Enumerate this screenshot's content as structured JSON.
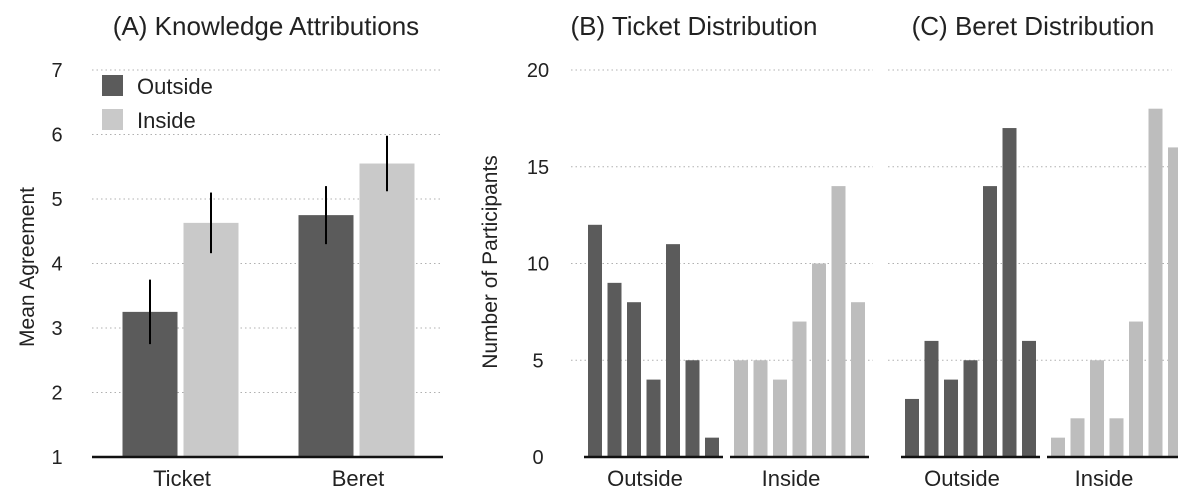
{
  "colors": {
    "outside": "#5b5b5b",
    "inside": "#c9c9c9",
    "inside_hist": "#bdbdbd",
    "grid": "#b0b0b0",
    "axis": "#111111",
    "errorbar": "#000000"
  },
  "chart_data": [
    {
      "type": "bar",
      "title": "(A) Knowledge Attributions",
      "xlabel": "",
      "ylabel": "Mean Agreement",
      "ylim": [
        1,
        7
      ],
      "yticks": [
        "1",
        "2",
        "3",
        "4",
        "5",
        "6",
        "7"
      ],
      "categories": [
        "Ticket",
        "Beret"
      ],
      "legend_position": "top-left",
      "grid": "horizontal dotted",
      "series": [
        {
          "name": "Outside",
          "values": [
            3.25,
            4.75
          ],
          "error": [
            0.5,
            0.45
          ]
        },
        {
          "name": "Inside",
          "values": [
            4.63,
            5.55
          ],
          "error": [
            0.47,
            0.43
          ]
        }
      ]
    },
    {
      "type": "bar",
      "title": "(B) Ticket Distribution",
      "xlabel": "",
      "ylabel": "Number of Participants",
      "ylim": [
        0,
        20
      ],
      "yticks": [
        "0",
        "5",
        "10",
        "15",
        "20"
      ],
      "grid": "horizontal dotted",
      "groups": [
        {
          "label": "Outside",
          "values": [
            12,
            9,
            8,
            4,
            11,
            5,
            1
          ]
        },
        {
          "label": "Inside",
          "values": [
            5,
            5,
            4,
            7,
            10,
            14,
            8
          ]
        }
      ]
    },
    {
      "type": "bar",
      "title": "(C) Beret Distribution",
      "xlabel": "",
      "ylabel": "",
      "ylim": [
        0,
        20
      ],
      "grid": "horizontal dotted",
      "groups": [
        {
          "label": "Outside",
          "values": [
            3,
            6,
            4,
            5,
            14,
            17,
            6
          ]
        },
        {
          "label": "Inside",
          "values": [
            1,
            2,
            5,
            2,
            7,
            18,
            16
          ]
        }
      ]
    }
  ]
}
